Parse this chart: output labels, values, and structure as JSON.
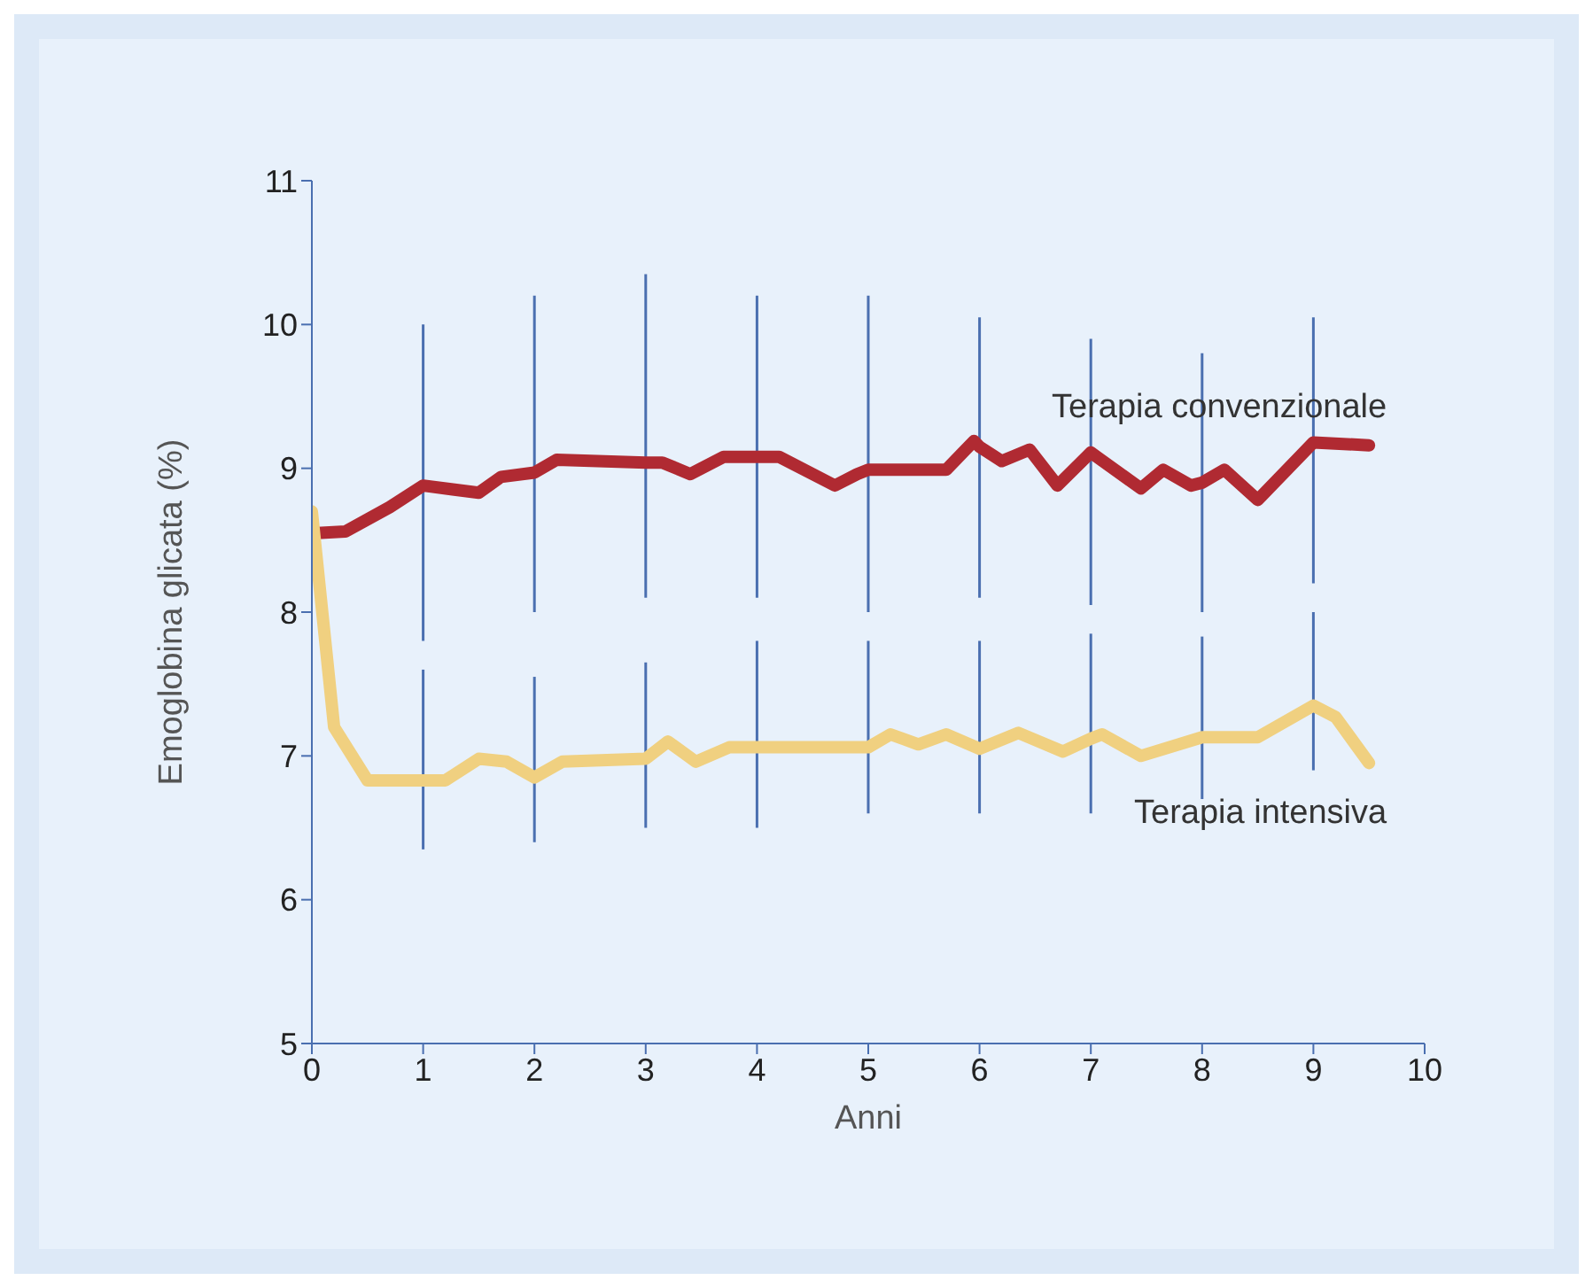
{
  "chart_data": {
    "type": "line",
    "xlabel": "Anni",
    "ylabel": "Emoglobina glicata (%)",
    "xlim": [
      0,
      10
    ],
    "xticks": [
      0,
      1,
      2,
      3,
      4,
      5,
      6,
      7,
      8,
      9,
      10
    ],
    "ylim": [
      5,
      11
    ],
    "yticks": [
      5,
      6,
      7,
      8,
      9,
      10,
      11
    ],
    "grid": false,
    "legend": false,
    "marker": "none",
    "line_style": "solid",
    "series": [
      {
        "name": "Terapia convenzionale",
        "color": "#b02a32",
        "x": [
          0.05,
          0.3,
          0.7,
          1,
          1.5,
          1.7,
          2,
          2.2,
          3,
          3.15,
          3.4,
          3.7,
          4,
          4.2,
          4.7,
          4.9,
          5,
          5.7,
          5.95,
          6,
          6.2,
          6.45,
          6.7,
          7,
          7.45,
          7.65,
          7.9,
          8,
          8.2,
          8.5,
          9,
          9.5
        ],
        "values": [
          8.55,
          8.56,
          8.73,
          8.88,
          8.83,
          8.94,
          8.97,
          9.06,
          9.04,
          9.04,
          8.96,
          9.08,
          9.08,
          9.08,
          8.88,
          8.96,
          8.99,
          8.99,
          9.19,
          9.15,
          9.05,
          9.13,
          8.88,
          9.11,
          8.86,
          8.99,
          8.88,
          8.9,
          8.99,
          8.78,
          9.18,
          9.16
        ],
        "errors": [
          null,
          null,
          null,
          [
            7.8,
            10.0
          ],
          null,
          null,
          [
            8.0,
            10.2
          ],
          null,
          [
            8.1,
            10.35
          ],
          null,
          null,
          null,
          [
            8.1,
            10.2
          ],
          null,
          null,
          null,
          [
            8.0,
            10.2
          ],
          null,
          null,
          [
            8.1,
            10.05
          ],
          null,
          null,
          null,
          [
            8.05,
            9.9
          ],
          null,
          null,
          null,
          [
            8.0,
            9.8
          ],
          null,
          null,
          [
            8.2,
            10.05
          ],
          null
        ]
      },
      {
        "name": "Terapia intensiva",
        "color": "#f0d080",
        "x": [
          0,
          0.2,
          0.5,
          1,
          1.2,
          1.5,
          1.75,
          2,
          2.25,
          3,
          3.2,
          3.45,
          3.75,
          4,
          5,
          5.2,
          5.45,
          5.7,
          6,
          6.35,
          6.75,
          7,
          7.1,
          7.45,
          8,
          8.5,
          9,
          9.2,
          9.5
        ],
        "values": [
          8.7,
          7.2,
          6.83,
          6.83,
          6.83,
          6.98,
          6.96,
          6.85,
          6.96,
          6.98,
          7.1,
          6.96,
          7.06,
          7.06,
          7.06,
          7.15,
          7.08,
          7.15,
          7.05,
          7.16,
          7.03,
          7.12,
          7.15,
          7.0,
          7.13,
          7.13,
          7.35,
          7.27,
          6.95
        ],
        "errors": [
          null,
          null,
          null,
          [
            6.35,
            7.6
          ],
          null,
          null,
          null,
          [
            6.4,
            7.55
          ],
          null,
          [
            6.5,
            7.65
          ],
          null,
          null,
          null,
          [
            6.5,
            7.8
          ],
          [
            6.6,
            7.8
          ],
          null,
          null,
          null,
          [
            6.6,
            7.8
          ],
          null,
          null,
          [
            6.6,
            7.85
          ],
          null,
          null,
          [
            6.7,
            7.83
          ],
          null,
          [
            6.9,
            8.0
          ],
          null,
          null
        ]
      }
    ]
  }
}
